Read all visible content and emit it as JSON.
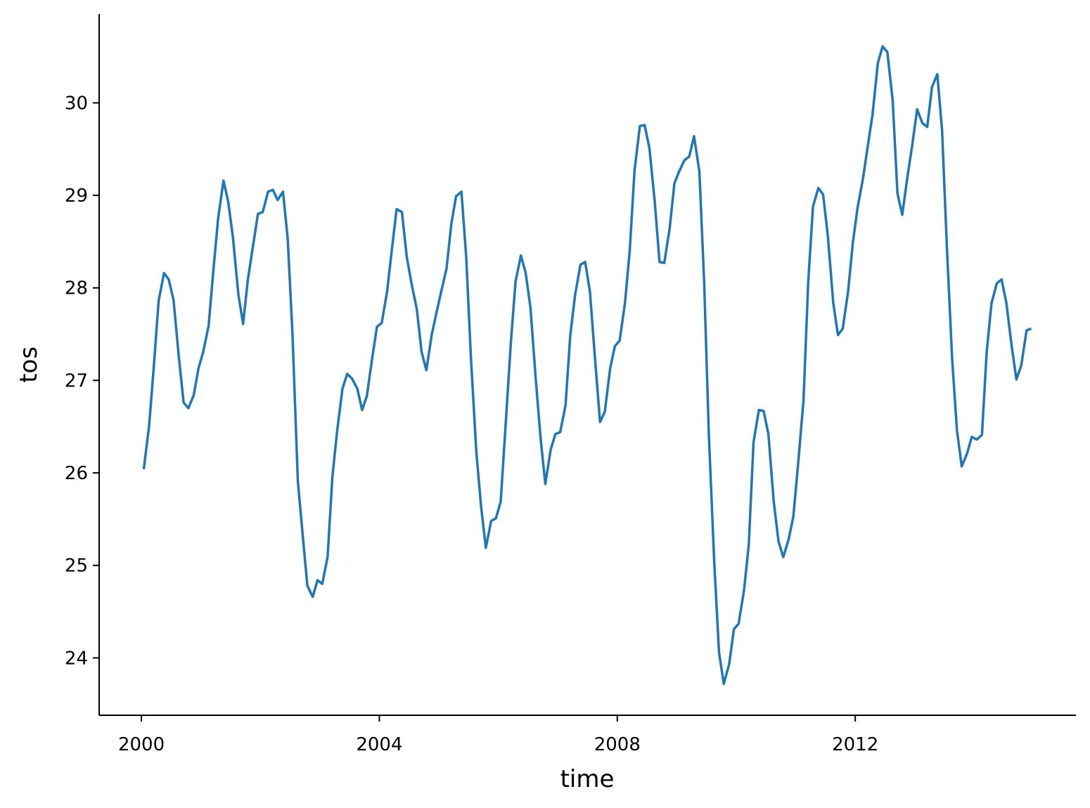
{
  "chart_data": {
    "type": "line",
    "xlabel": "time",
    "ylabel": "tos",
    "color": "#1f77b4",
    "xlim": [
      1999.29,
      2015.71
    ],
    "xticks": [
      2000,
      2004,
      2008,
      2012
    ],
    "ylim": [
      23.38,
      30.96
    ],
    "yticks": [
      24,
      25,
      26,
      27,
      28,
      29,
      30
    ],
    "x": [
      2000.04,
      2000.13,
      2000.21,
      2000.29,
      2000.38,
      2000.46,
      2000.54,
      2000.63,
      2000.71,
      2000.79,
      2000.88,
      2000.96,
      2001.04,
      2001.13,
      2001.21,
      2001.29,
      2001.38,
      2001.46,
      2001.54,
      2001.63,
      2001.71,
      2001.79,
      2001.88,
      2001.96,
      2002.04,
      2002.13,
      2002.21,
      2002.29,
      2002.38,
      2002.46,
      2002.54,
      2002.63,
      2002.71,
      2002.79,
      2002.88,
      2002.96,
      2003.04,
      2003.13,
      2003.21,
      2003.29,
      2003.38,
      2003.46,
      2003.54,
      2003.63,
      2003.71,
      2003.79,
      2003.88,
      2003.96,
      2004.04,
      2004.13,
      2004.21,
      2004.29,
      2004.38,
      2004.46,
      2004.54,
      2004.63,
      2004.71,
      2004.79,
      2004.88,
      2004.96,
      2005.04,
      2005.13,
      2005.21,
      2005.29,
      2005.38,
      2005.46,
      2005.54,
      2005.63,
      2005.71,
      2005.79,
      2005.88,
      2005.96,
      2006.04,
      2006.13,
      2006.21,
      2006.29,
      2006.38,
      2006.46,
      2006.54,
      2006.63,
      2006.71,
      2006.79,
      2006.88,
      2006.96,
      2007.04,
      2007.13,
      2007.21,
      2007.29,
      2007.38,
      2007.46,
      2007.54,
      2007.63,
      2007.71,
      2007.79,
      2007.88,
      2007.96,
      2008.04,
      2008.13,
      2008.21,
      2008.29,
      2008.38,
      2008.46,
      2008.54,
      2008.63,
      2008.71,
      2008.79,
      2008.88,
      2008.96,
      2009.04,
      2009.13,
      2009.21,
      2009.29,
      2009.38,
      2009.46,
      2009.54,
      2009.63,
      2009.71,
      2009.79,
      2009.88,
      2009.96,
      2010.04,
      2010.13,
      2010.21,
      2010.29,
      2010.38,
      2010.46,
      2010.54,
      2010.63,
      2010.71,
      2010.79,
      2010.88,
      2010.96,
      2011.04,
      2011.13,
      2011.21,
      2011.29,
      2011.38,
      2011.46,
      2011.54,
      2011.63,
      2011.71,
      2011.79,
      2011.88,
      2011.96,
      2012.04,
      2012.13,
      2012.21,
      2012.29,
      2012.38,
      2012.46,
      2012.54,
      2012.63,
      2012.71,
      2012.79,
      2012.88,
      2012.96,
      2013.04,
      2013.13,
      2013.21,
      2013.29,
      2013.38,
      2013.46,
      2013.54,
      2013.63,
      2013.71,
      2013.79,
      2013.88,
      2013.96,
      2014.04,
      2014.13,
      2014.21,
      2014.29,
      2014.38,
      2014.46,
      2014.54,
      2014.63,
      2014.71,
      2014.79,
      2014.88,
      2014.96
    ],
    "values": [
      26.04,
      26.51,
      27.16,
      27.86,
      28.16,
      28.09,
      27.87,
      27.25,
      26.76,
      26.7,
      26.84,
      27.13,
      27.31,
      27.59,
      28.19,
      28.75,
      29.16,
      28.93,
      28.54,
      27.93,
      27.61,
      28.09,
      28.47,
      28.8,
      28.82,
      29.04,
      29.06,
      28.95,
      29.04,
      28.53,
      27.5,
      25.91,
      25.34,
      24.78,
      24.66,
      24.84,
      24.8,
      25.09,
      25.95,
      26.45,
      26.91,
      27.07,
      27.02,
      26.91,
      26.68,
      26.83,
      27.24,
      27.58,
      27.62,
      27.96,
      28.41,
      28.85,
      28.82,
      28.34,
      28.05,
      27.77,
      27.31,
      27.11,
      27.49,
      27.73,
      27.96,
      28.21,
      28.69,
      28.99,
      29.04,
      28.34,
      27.24,
      26.23,
      25.64,
      25.19,
      25.48,
      25.51,
      25.69,
      26.59,
      27.4,
      28.07,
      28.35,
      28.16,
      27.79,
      27.01,
      26.38,
      25.88,
      26.25,
      26.42,
      26.44,
      26.73,
      27.49,
      27.92,
      28.25,
      28.28,
      27.96,
      27.2,
      26.55,
      26.66,
      27.13,
      27.37,
      27.43,
      27.84,
      28.41,
      29.27,
      29.75,
      29.76,
      29.51,
      28.93,
      28.28,
      28.27,
      28.64,
      29.13,
      29.26,
      29.38,
      29.42,
      29.64,
      29.26,
      28.07,
      26.4,
      25.03,
      24.06,
      23.72,
      23.93,
      24.31,
      24.37,
      24.73,
      25.22,
      26.33,
      26.68,
      26.67,
      26.42,
      25.69,
      25.26,
      25.09,
      25.28,
      25.53,
      26.1,
      26.78,
      28.07,
      28.88,
      29.08,
      29.01,
      28.56,
      27.84,
      27.49,
      27.56,
      27.96,
      28.49,
      28.87,
      29.18,
      29.53,
      29.87,
      30.43,
      30.61,
      30.55,
      30.02,
      29.02,
      28.79,
      29.21,
      29.55,
      29.93,
      29.78,
      29.74,
      30.17,
      30.31,
      29.7,
      28.45,
      27.22,
      26.46,
      26.07,
      26.21,
      26.39,
      26.36,
      26.41,
      27.31,
      27.83,
      28.05,
      28.09,
      27.84,
      27.37,
      27.01,
      27.16,
      27.54,
      27.56
    ]
  }
}
